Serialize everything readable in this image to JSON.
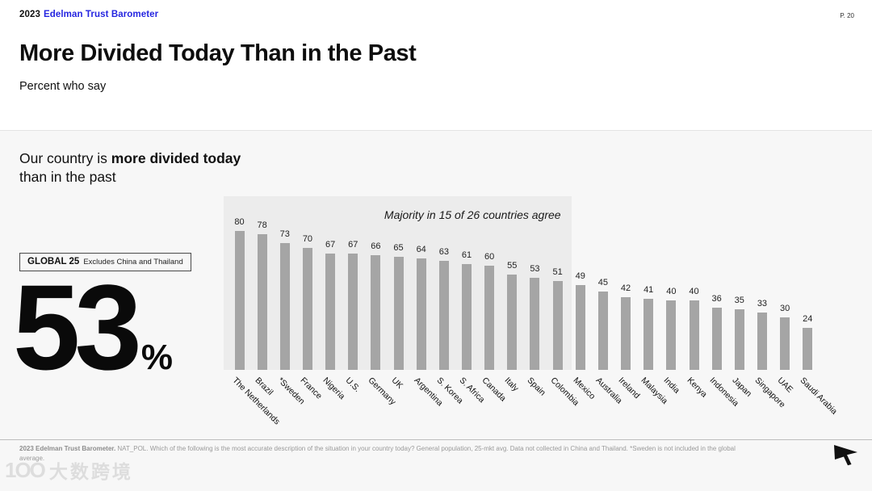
{
  "header": {
    "year": "2023",
    "brand": "Edelman Trust Barometer",
    "page_number": "P. 20"
  },
  "title": "More Divided Today Than in the Past",
  "subtitle": "Percent who say",
  "statement": {
    "prefix": "Our country is ",
    "bold": "more divided today",
    "suffix": " than in the past"
  },
  "global_stat": {
    "label": "GLOBAL 25",
    "note": "Excludes China and Thailand",
    "value": "53",
    "unit": "%"
  },
  "chart_data": {
    "type": "bar",
    "categories": [
      "The Netherlands",
      "Brazil",
      "*Sweden",
      "France",
      "Nigeria",
      "U.S.",
      "Germany",
      "UK",
      "Argentina",
      "S. Korea",
      "S. Africa",
      "Canada",
      "Italy",
      "Spain",
      "Colombia",
      "Mexico",
      "Australia",
      "Ireland",
      "Malaysia",
      "India",
      "Kenya",
      "Indonesia",
      "Japan",
      "Singapore",
      "UAE",
      "Saudi Arabia"
    ],
    "values": [
      80,
      78,
      73,
      70,
      67,
      67,
      66,
      65,
      64,
      63,
      61,
      60,
      55,
      53,
      51,
      49,
      45,
      42,
      41,
      40,
      40,
      36,
      35,
      33,
      30,
      24
    ],
    "annotation": "Majority in 15 of 26 countries agree",
    "highlighted_countries": 15,
    "ylim": [
      0,
      100
    ],
    "grid": false,
    "value_labels": true,
    "bar_color": "#a5a5a5",
    "panel_color": "#ececec",
    "legend": "none"
  },
  "footer": {
    "source_bold": "2023 Edelman Trust Barometer.",
    "source_rest": " NAT_POL. Which of the following is the most accurate description of the situation in your country today? General population, 25-mkt avg. Data not collected in China and Thailand. *Sweden is not included in the global average."
  },
  "watermark": {
    "logo": "1OO",
    "text": "大数跨境"
  },
  "icons": {
    "next_arrow": "black right-pointing arrow"
  }
}
